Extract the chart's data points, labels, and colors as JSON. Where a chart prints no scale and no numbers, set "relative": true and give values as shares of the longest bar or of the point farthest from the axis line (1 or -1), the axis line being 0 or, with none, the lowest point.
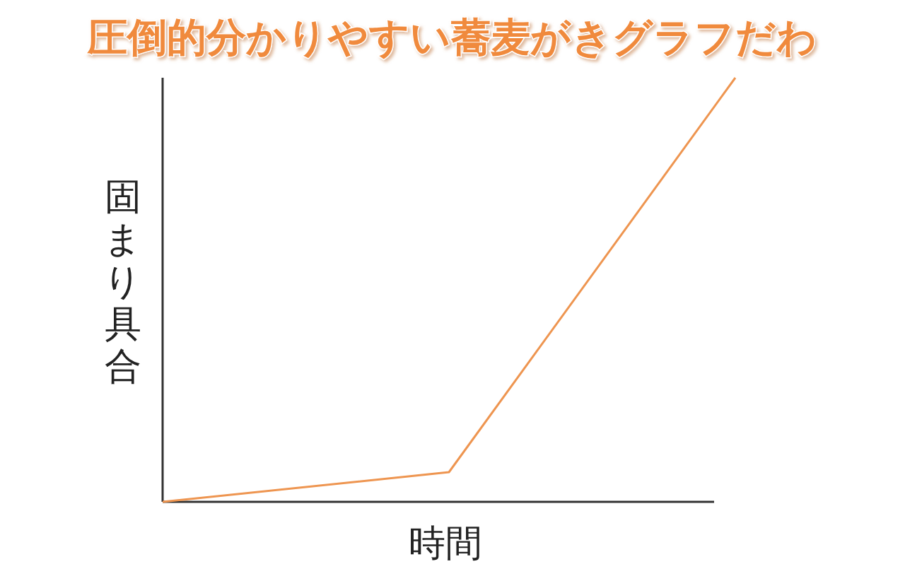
{
  "chart_data": {
    "type": "line",
    "title": "圧倒的分かりやすい蕎麦がきグラフだわ",
    "xlabel": "時間",
    "ylabel": "固まり具合",
    "relative": true,
    "categories": [
      null,
      null,
      null
    ],
    "series": [
      {
        "color": "#ee9550",
        "values": [
          0,
          0.07,
          1
        ]
      }
    ],
    "marker": "none"
  }
}
